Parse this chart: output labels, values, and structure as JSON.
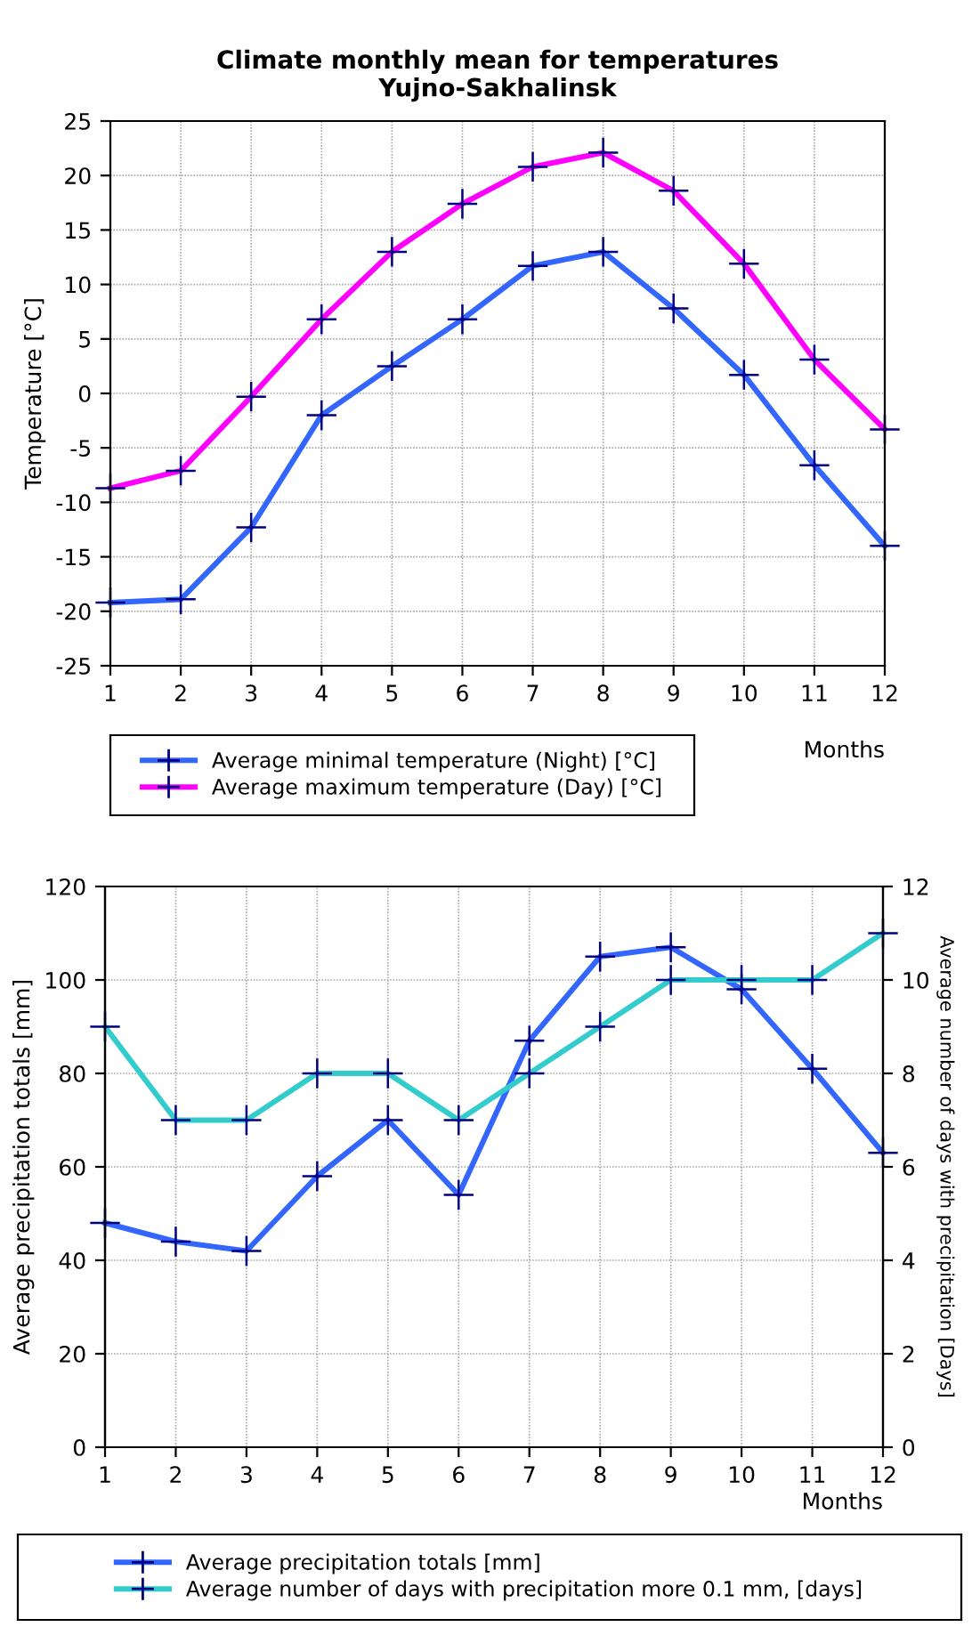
{
  "chart_data": [
    {
      "type": "line",
      "title": "Climate monthly mean for temperatures\nYujno-Sakhalinsk",
      "xlabel": "Months",
      "ylabel": "Temperature [°C]",
      "x": [
        1,
        2,
        3,
        4,
        5,
        6,
        7,
        8,
        9,
        10,
        11,
        12
      ],
      "series": [
        {
          "name": "Average minimal temperature (Night) [°C]",
          "color": "#3366ff",
          "values": [
            -19.2,
            -18.9,
            -12.3,
            -2,
            2.5,
            6.8,
            11.7,
            13,
            7.8,
            1.7,
            -6.6,
            -14
          ]
        },
        {
          "name": "Average maximum temperature (Day) [°C]",
          "color": "#ff00ff",
          "values": [
            -8.7,
            -7.1,
            -0.3,
            6.8,
            13,
            17.4,
            20.8,
            22.1,
            18.6,
            11.9,
            3.1,
            -3.3
          ]
        }
      ],
      "xlim": [
        1,
        12
      ],
      "xticks": [
        1,
        2,
        3,
        4,
        5,
        6,
        7,
        8,
        9,
        10,
        11,
        12
      ],
      "ylim": [
        -25,
        25
      ],
      "yticks": [
        -25,
        -20,
        -15,
        -10,
        -5,
        0,
        5,
        10,
        15,
        20,
        25
      ],
      "grid": true,
      "legend": "bottom",
      "marker": "cross",
      "line_style": "solid"
    },
    {
      "type": "line",
      "xlabel": "Months",
      "ylabel": "Average precipitation totals [mm]",
      "y2label": "Average number of days with precipitation [Days]",
      "x": [
        1,
        2,
        3,
        4,
        5,
        6,
        7,
        8,
        9,
        10,
        11,
        12
      ],
      "series": [
        {
          "name": "Average precipitation totals [mm]",
          "color": "#3366ff",
          "values": [
            48,
            44,
            42,
            58,
            70,
            54,
            87,
            105,
            107,
            98,
            81,
            63
          ]
        },
        {
          "name": "Average number of days with precipitation more 0.1 mm, [days]",
          "color": "#33cccc",
          "axis": "y2",
          "values": [
            9,
            7,
            7,
            8,
            8,
            7,
            8,
            9,
            10,
            10,
            10,
            11
          ]
        }
      ],
      "xlim": [
        1,
        12
      ],
      "xticks": [
        1,
        2,
        3,
        4,
        5,
        6,
        7,
        8,
        9,
        10,
        11,
        12
      ],
      "ylim": [
        0,
        120
      ],
      "yticks": [
        0,
        20,
        40,
        60,
        80,
        100,
        120
      ],
      "y2lim": [
        0,
        12
      ],
      "y2ticks": [
        0,
        2,
        4,
        6,
        8,
        10,
        12
      ],
      "grid": true,
      "legend": "bottom",
      "marker": "cross",
      "line_style": "solid"
    }
  ]
}
